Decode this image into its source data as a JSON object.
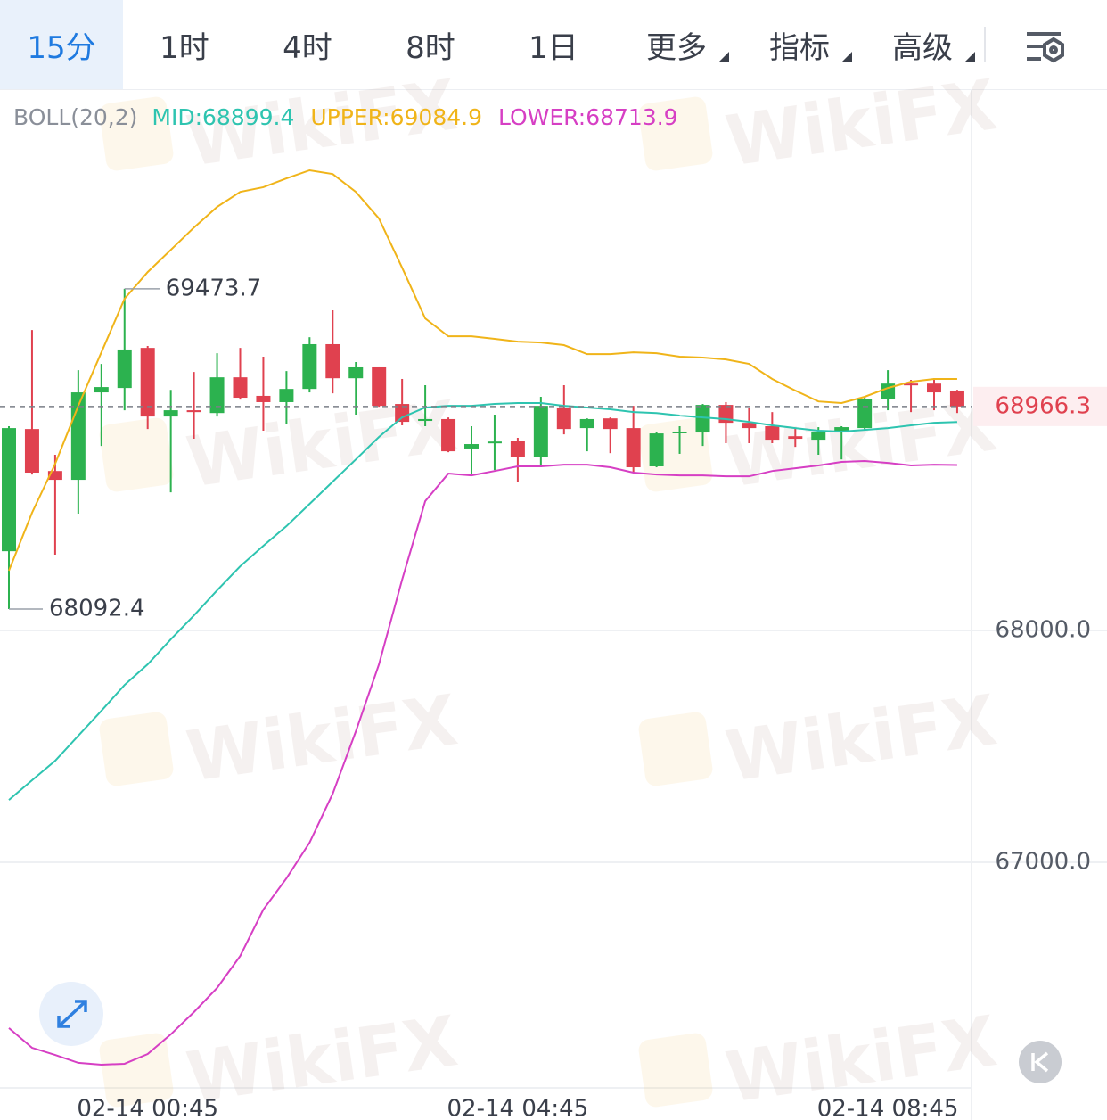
{
  "tabs": [
    {
      "label": "15分"
    },
    {
      "label": "1时"
    },
    {
      "label": "4时"
    },
    {
      "label": "8时"
    },
    {
      "label": "1日"
    },
    {
      "label": "更多",
      "menu": true
    },
    {
      "label": "指标",
      "menu": true
    },
    {
      "label": "高级",
      "menu": true
    }
  ],
  "active_tab": 0,
  "watermark": "WikiFX",
  "chart_data": {
    "type": "candlestick",
    "indicator": "BOLL(20,2)",
    "categories": [
      null,
      null,
      null,
      null,
      null,
      null,
      "02-14 00:45",
      null,
      null,
      null,
      null,
      null,
      null,
      null,
      null,
      null,
      null,
      null,
      null,
      null,
      null,
      null,
      "02-14 04:45",
      null,
      null,
      null,
      null,
      null,
      null,
      null,
      null,
      null,
      null,
      null,
      null,
      null,
      null,
      null,
      "02-14 08:45",
      null,
      null,
      null
    ],
    "open": [
      68342,
      68869,
      68688,
      68650,
      69027,
      69046,
      69219,
      68923,
      68950,
      68938,
      69092,
      69012,
      68985,
      69042,
      69235,
      69088,
      69135,
      68977,
      68904,
      68912,
      68785,
      68808,
      68819,
      68750,
      68962,
      68873,
      68915,
      68873,
      68708,
      68854,
      68854,
      68973,
      68896,
      68881,
      68838,
      68823,
      68854,
      68873,
      69000,
      69065,
      69065,
      69035
    ],
    "high": [
      68881,
      69296,
      68758,
      69123,
      69150,
      69473.7,
      69227,
      69038,
      69115,
      69196,
      69219,
      69181,
      69119,
      69265,
      69381,
      69158,
      69135,
      69085,
      69058,
      68919,
      68881,
      68931,
      68831,
      69008,
      69058,
      68915,
      68919,
      68969,
      68858,
      68881,
      68977,
      68985,
      68962,
      68942,
      68873,
      68877,
      68881,
      69008,
      69123,
      69081,
      69088,
      69038
    ],
    "low": [
      68092.4,
      68673,
      68327,
      68504,
      68796,
      68950,
      68869,
      68596,
      68827,
      68923,
      68996,
      68862,
      68892,
      69027,
      69023,
      68931,
      68965,
      68885,
      68881,
      68769,
      68677,
      68692,
      68642,
      68704,
      68846,
      68773,
      68765,
      68681,
      68704,
      68762,
      68796,
      68808,
      68808,
      68808,
      68792,
      68758,
      68738,
      68862,
      68950,
      68942,
      68950,
      68938
    ],
    "close": [
      68873,
      68681,
      68650,
      69027,
      69050,
      69212,
      68923,
      68950,
      68942,
      69092,
      69004,
      68985,
      69042,
      69235,
      69088,
      69135,
      68969,
      68900,
      68912,
      68773,
      68804,
      68815,
      68750,
      68969,
      68869,
      68912,
      68869,
      68704,
      68850,
      68858,
      68973,
      68896,
      68873,
      68823,
      68827,
      68858,
      68877,
      69000,
      69065,
      69058,
      69027,
      68966.3
    ],
    "series": [
      {
        "legend": "MID:68899.4",
        "color": "#2ec4b0",
        "values": [
          67269,
          67354,
          67438,
          67546,
          67654,
          67765,
          67854,
          67962,
          68065,
          68173,
          68277,
          68365,
          68450,
          68546,
          68642,
          68738,
          68835,
          68919,
          68962,
          68969,
          68969,
          68977,
          68981,
          68981,
          68969,
          68962,
          68954,
          68942,
          68938,
          68927,
          68919,
          68912,
          68900,
          68885,
          68873,
          68862,
          68858,
          68865,
          68873,
          68885,
          68896,
          68899.4
        ]
      },
      {
        "legend": "UPPER:69084.9",
        "color": "#f0b419",
        "values": [
          68258,
          68508,
          68719,
          68969,
          69200,
          69431,
          69546,
          69642,
          69738,
          69827,
          69892,
          69912,
          69950,
          69985,
          69969,
          69892,
          69777,
          69565,
          69346,
          69269,
          69269,
          69258,
          69246,
          69242,
          69231,
          69192,
          69192,
          69200,
          69196,
          69181,
          69177,
          69169,
          69150,
          69085,
          69035,
          68988,
          68981,
          69008,
          69046,
          69073,
          69085,
          69084.9
        ]
      },
      {
        "legend": "LOWER:68713.9",
        "color": "#d63fc4",
        "values": [
          66285,
          66200,
          66169,
          66135,
          66127,
          66131,
          66173,
          66258,
          66354,
          66458,
          66596,
          66796,
          66931,
          67085,
          67296,
          67565,
          67854,
          68219,
          68558,
          68677,
          68669,
          68688,
          68708,
          68708,
          68715,
          68715,
          68704,
          68681,
          68673,
          68669,
          68669,
          68665,
          68665,
          68688,
          68700,
          68712,
          68727,
          68731,
          68723,
          68712,
          68715,
          68713.9
        ]
      }
    ],
    "up_color": "#2cb24f",
    "down_color": "#e0414f",
    "ylim": [
      66027,
      70335
    ],
    "yticks": [
      {
        "value": 67000,
        "label": "67000.0"
      },
      {
        "value": 68000,
        "label": "68000.0"
      }
    ],
    "grid": true,
    "current_price_line": true
  }
}
